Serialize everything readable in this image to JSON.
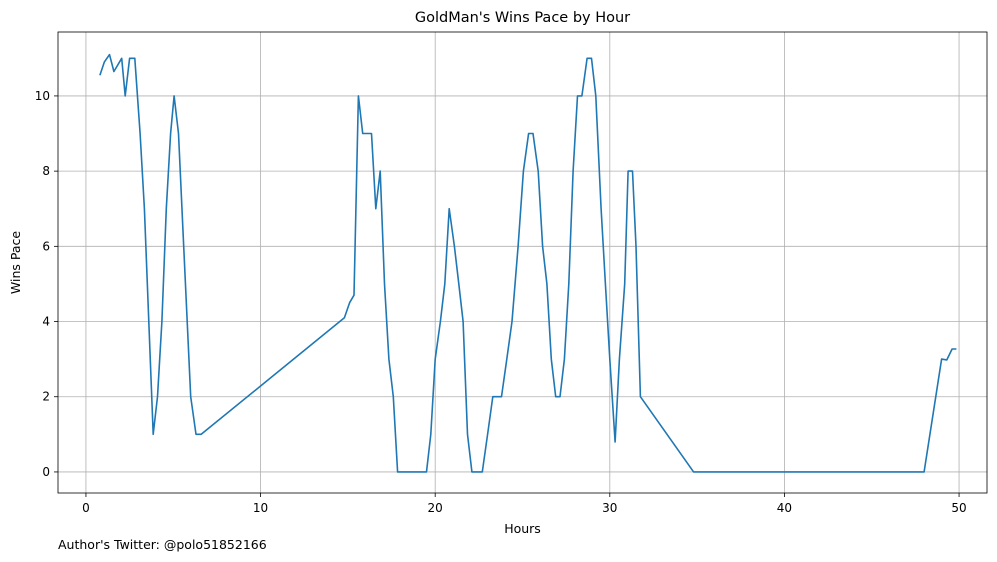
{
  "footer_text": "Author's Twitter: @polo51852166",
  "chart_data": {
    "type": "line",
    "title": "GoldMan's Wins Pace by Hour",
    "xlabel": "Hours",
    "ylabel": "Wins Pace",
    "xlim": [
      -1.6,
      51.6
    ],
    "ylim": [
      -0.56,
      11.7
    ],
    "xticks": [
      0,
      10,
      20,
      30,
      40,
      50
    ],
    "yticks": [
      0,
      2,
      4,
      6,
      8,
      10
    ],
    "grid": true,
    "line_color": "#1f77b4",
    "series": [
      {
        "x": [
          0.8,
          1.05,
          1.35,
          1.6,
          2.05,
          2.25,
          2.5,
          2.8,
          3.1,
          3.35,
          3.6,
          3.85,
          4.1,
          4.35,
          4.6,
          4.85,
          5.05,
          5.3,
          5.6,
          6.0,
          6.3,
          6.6,
          14.8,
          15.1,
          15.35,
          15.6,
          15.85,
          16.1,
          16.35,
          16.6,
          16.85,
          17.1,
          17.35,
          17.6,
          17.85,
          19.5,
          19.75,
          20.0,
          20.3,
          20.55,
          20.8,
          21.1,
          21.35,
          21.6,
          21.85,
          22.1,
          22.4,
          22.7,
          23.0,
          23.3,
          23.55,
          23.8,
          24.1,
          24.4,
          24.75,
          25.05,
          25.35,
          25.6,
          25.9,
          26.15,
          26.4,
          26.65,
          26.9,
          27.15,
          27.4,
          27.65,
          27.9,
          28.15,
          28.4,
          28.7,
          28.95,
          29.2,
          29.5,
          29.75,
          30.0,
          30.3,
          30.55,
          30.85,
          31.05,
          31.3,
          31.5,
          31.75,
          34.8,
          48.0,
          49.0,
          49.3,
          49.6,
          49.85
        ],
        "y": [
          10.55,
          10.9,
          11.1,
          10.65,
          11.0,
          10.0,
          11.0,
          11.0,
          9.0,
          7.0,
          4.0,
          1.0,
          2.0,
          4.0,
          7.0,
          9.0,
          10.0,
          9.0,
          6.0,
          2.0,
          1.0,
          1.0,
          4.1,
          4.5,
          4.7,
          10.0,
          9.0,
          9.0,
          9.0,
          7.0,
          8.0,
          5.0,
          3.0,
          2.0,
          0.0,
          0.0,
          1.0,
          3.0,
          4.0,
          5.0,
          7.0,
          6.0,
          5.0,
          4.0,
          1.0,
          0.0,
          0.0,
          0.0,
          1.0,
          2.0,
          2.0,
          2.0,
          3.0,
          4.0,
          6.0,
          8.0,
          9.0,
          9.0,
          8.0,
          6.0,
          5.0,
          3.0,
          2.0,
          2.0,
          3.0,
          5.0,
          8.0,
          10.0,
          10.0,
          11.0,
          11.0,
          10.0,
          7.0,
          5.0,
          3.0,
          0.8,
          3.0,
          5.0,
          8.0,
          8.0,
          6.0,
          2.0,
          0.0,
          0.0,
          3.0,
          2.98,
          3.27,
          3.27
        ]
      }
    ]
  }
}
